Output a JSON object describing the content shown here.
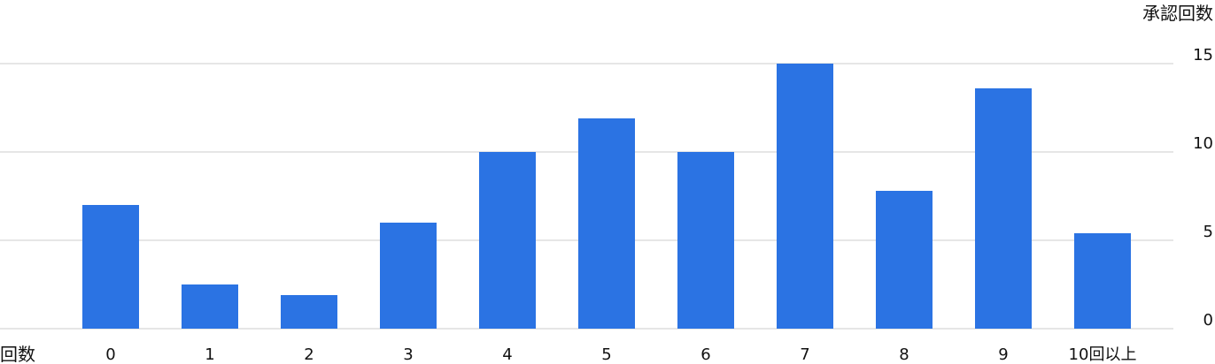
{
  "chart_data": {
    "type": "bar",
    "categories": [
      "0",
      "1",
      "2",
      "3",
      "4",
      "5",
      "6",
      "7",
      "8",
      "9",
      "10回以上"
    ],
    "values": [
      7,
      2.5,
      1.9,
      6,
      10,
      11.9,
      10,
      15,
      7.8,
      13.6,
      5.4
    ],
    "xlabel": "回数",
    "ylabel": "承認回数",
    "ylim": [
      0,
      15
    ],
    "yticks": [
      0,
      5,
      10,
      15
    ],
    "grid": true,
    "legend": false,
    "colors": {
      "bar": "#2b73e3",
      "grid": "#e6e6e6",
      "text": "#111111"
    }
  }
}
